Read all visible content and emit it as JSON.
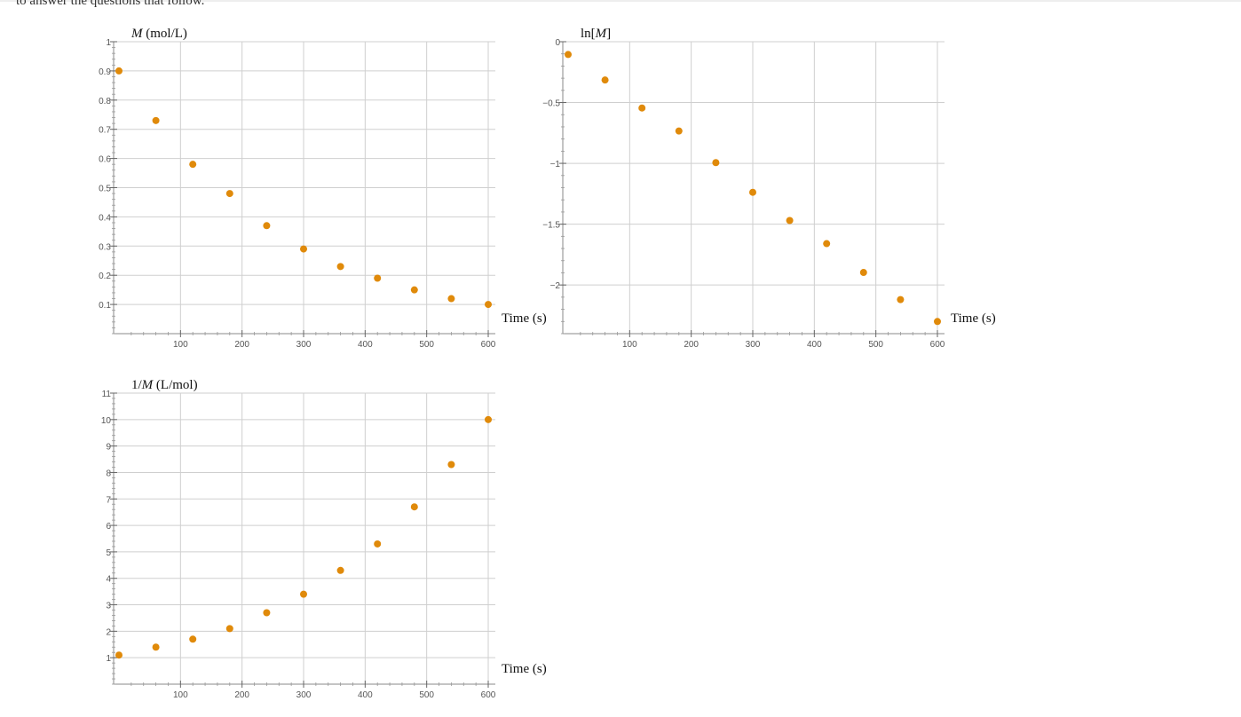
{
  "page": {
    "intro_text": "to answer the questions that follow."
  },
  "colors": {
    "point": "#E08A0A",
    "grid": "#cfcfcf",
    "axis": "#888888"
  },
  "chart_data": [
    {
      "type": "scatter",
      "title": "",
      "ylabel_parts": [
        {
          "text": "M",
          "italic": true
        },
        {
          "text": " (mol/L)",
          "italic": false
        }
      ],
      "xlabel": "Time (s)",
      "xlim": [
        0,
        600
      ],
      "ylim": [
        0,
        1
      ],
      "x_ticks": [
        100,
        200,
        300,
        400,
        500,
        600
      ],
      "y_ticks": [
        0.1,
        0.2,
        0.3,
        0.4,
        0.5,
        0.6,
        0.7,
        0.8,
        0.9,
        1
      ],
      "y_tick_labels": [
        "0.1",
        "0.2",
        "0.3",
        "0.4",
        "0.5",
        "0.6",
        "0.7",
        "0.8",
        "0.9",
        "1"
      ],
      "grid": true,
      "series": [
        {
          "x": [
            0,
            60,
            120,
            180,
            240,
            300,
            360,
            420,
            480,
            540,
            600
          ],
          "y": [
            0.9,
            0.73,
            0.58,
            0.48,
            0.37,
            0.29,
            0.23,
            0.19,
            0.15,
            0.12,
            0.1
          ]
        }
      ]
    },
    {
      "type": "scatter",
      "title": "",
      "ylabel_parts": [
        {
          "text": "ln[",
          "italic": false
        },
        {
          "text": "M",
          "italic": true
        },
        {
          "text": "]",
          "italic": false
        }
      ],
      "xlabel": "Time (s)",
      "xlim": [
        0,
        600
      ],
      "ylim": [
        -2.4,
        0
      ],
      "x_ticks": [
        100,
        200,
        300,
        400,
        500,
        600
      ],
      "y_ticks": [
        0,
        -0.5,
        -1,
        -1.5,
        -2
      ],
      "y_tick_labels": [
        "0",
        "−0.5",
        "−1",
        "−1.5",
        "−2"
      ],
      "grid": true,
      "series": [
        {
          "x": [
            0,
            60,
            120,
            180,
            240,
            300,
            360,
            420,
            480,
            540,
            600
          ],
          "y": [
            -0.105,
            -0.315,
            -0.545,
            -0.734,
            -0.994,
            -1.238,
            -1.47,
            -1.66,
            -1.897,
            -2.12,
            -2.3
          ]
        }
      ]
    },
    {
      "type": "scatter",
      "title": "",
      "ylabel_parts": [
        {
          "text": "1/",
          "italic": false
        },
        {
          "text": "M",
          "italic": true
        },
        {
          "text": " (L/mol)",
          "italic": false
        }
      ],
      "xlabel": "Time (s)",
      "xlim": [
        0,
        600
      ],
      "ylim": [
        0,
        11
      ],
      "x_ticks": [
        100,
        200,
        300,
        400,
        500,
        600
      ],
      "y_ticks": [
        1,
        2,
        3,
        4,
        5,
        6,
        7,
        8,
        9,
        10,
        11
      ],
      "y_tick_labels": [
        "1",
        "2",
        "3",
        "4",
        "5",
        "6",
        "7",
        "8",
        "9",
        "10",
        "11"
      ],
      "grid": true,
      "series": [
        {
          "x": [
            0,
            60,
            120,
            180,
            240,
            300,
            360,
            420,
            480,
            540,
            600
          ],
          "y": [
            1.1,
            1.4,
            1.7,
            2.1,
            2.7,
            3.4,
            4.3,
            5.3,
            6.7,
            8.3,
            10
          ]
        }
      ]
    }
  ]
}
